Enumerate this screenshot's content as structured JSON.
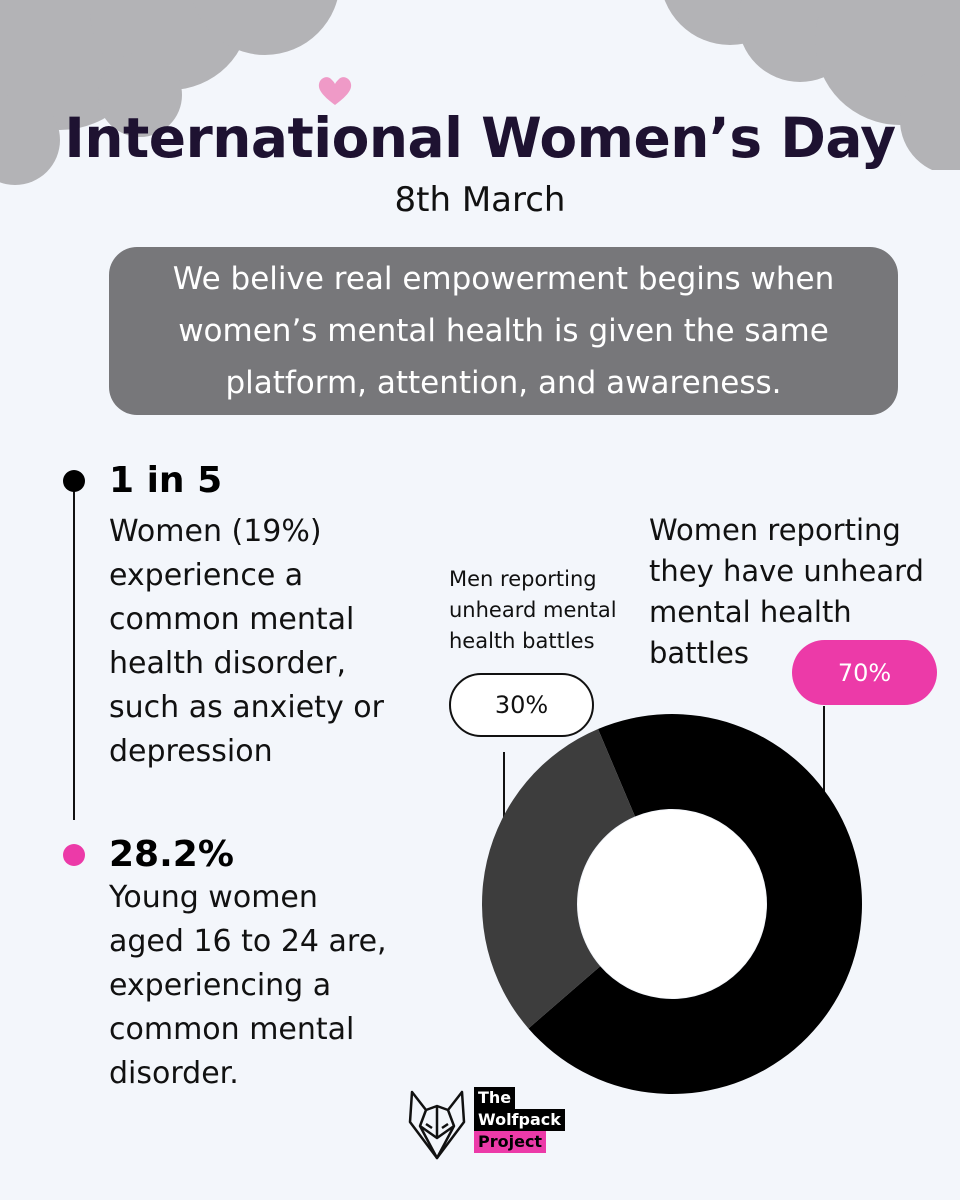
{
  "header": {
    "title": "International Women’s Day",
    "date": "8th March"
  },
  "quote": {
    "line_1": "We belive real empowerment begins when",
    "line_2": "women’s mental health is given the same",
    "line_3": "platform, attention, and awareness."
  },
  "stats": [
    {
      "headline": "1 in 5",
      "lines": [
        "Women (19%)",
        "experience a",
        "common mental",
        "health disorder,",
        "such as anxiety or",
        "depression"
      ],
      "dot_color": "#000000"
    },
    {
      "headline": "28.2%",
      "lines": [
        "Young women",
        "aged 16 to 24 are,",
        "experiencing a",
        "common mental",
        "disorder."
      ],
      "dot_color": "#ec3aa8"
    }
  ],
  "chart_data": {
    "type": "pie",
    "donut": true,
    "title": "",
    "series": [
      {
        "name": "Men reporting unheard mental health battles",
        "label_lines": [
          "Men reporting",
          "unheard mental",
          "health battles"
        ],
        "value": 30,
        "value_label": "30%",
        "color": "#3d3d3d"
      },
      {
        "name": "Women reporting they have unheard mental health battles",
        "label_lines": [
          "Women reporting",
          "they have unheard",
          "mental health",
          "battles"
        ],
        "value": 70,
        "value_label": "70%",
        "color": "#000000"
      }
    ]
  },
  "logo": {
    "line_1": "The",
    "line_2": "Wolfpack",
    "line_3": "Project",
    "icon": "wolf-head-icon"
  },
  "colors": {
    "background": "#f3f6fb",
    "accent_pink": "#ec3aa8",
    "title": "#1e1231",
    "quote_box": "#77777a",
    "clouds": "#b3b3b6"
  }
}
